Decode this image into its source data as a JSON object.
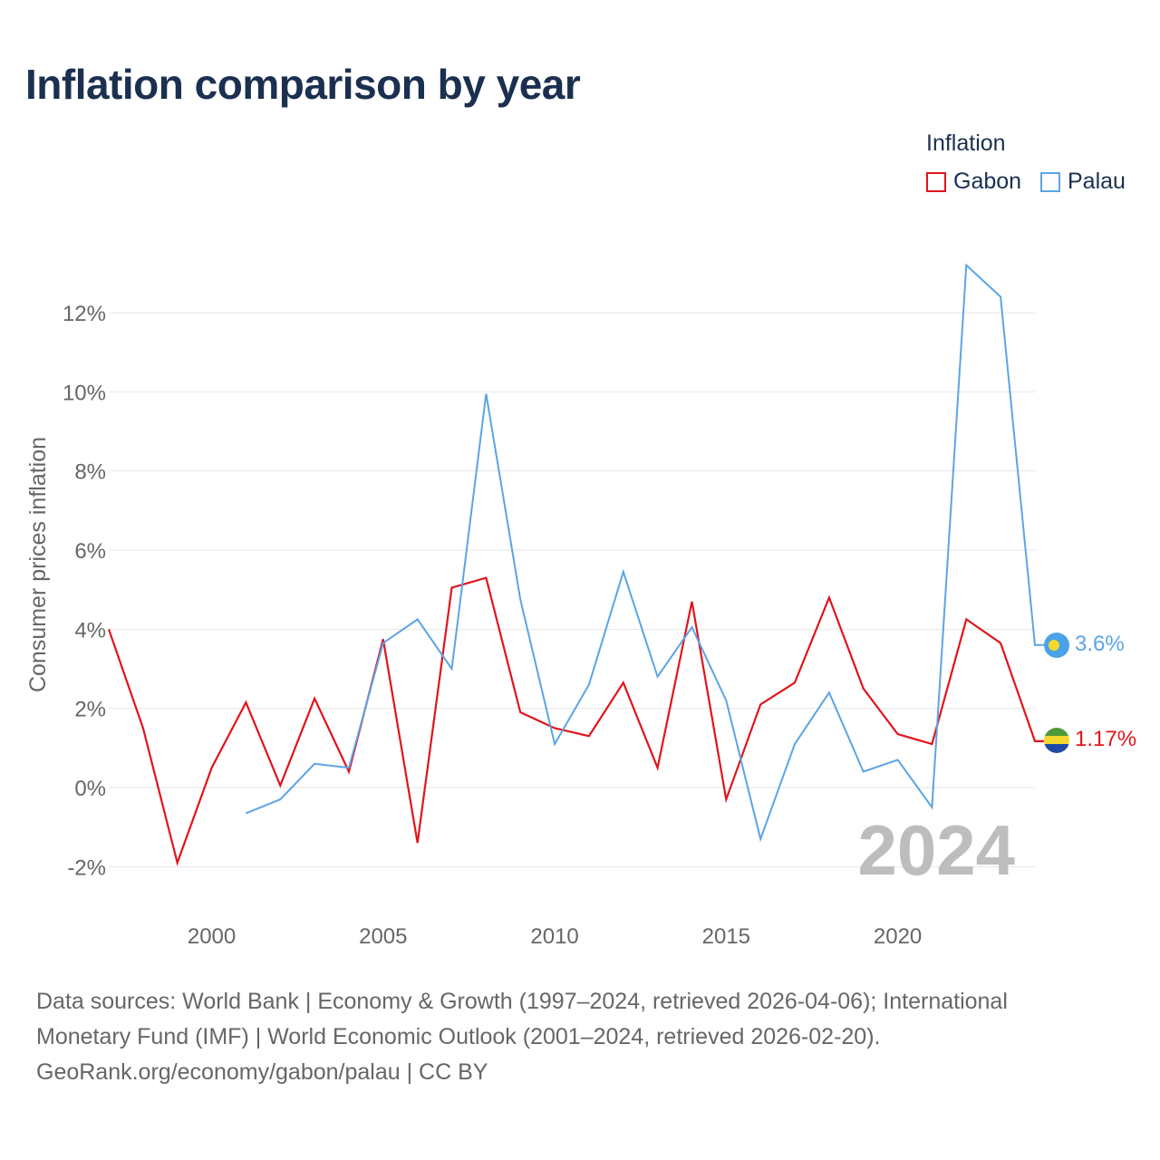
{
  "title": "Inflation comparison by year",
  "legend": {
    "title": "Inflation",
    "items": [
      {
        "label": "Gabon",
        "color": "#e0151b"
      },
      {
        "label": "Palau",
        "color": "#5ba4e6"
      }
    ]
  },
  "year_watermark": "2024",
  "end_labels": {
    "gabon": "1.17%",
    "palau": "3.6%"
  },
  "source": {
    "line1": "Data sources: World Bank | Economy & Growth (1997–2024, retrieved 2026-04-06); International",
    "line2": "Monetary Fund (IMF) | World Economic Outlook (2001–2024, retrieved 2026-02-20).",
    "line3": "GeoRank.org/economy/gabon/palau | CC BY"
  },
  "chart_data": {
    "type": "line",
    "title": "Inflation comparison by year",
    "xlabel": "",
    "ylabel": "Consumer prices inflation",
    "xlim": [
      1997,
      2024
    ],
    "ylim": [
      -2,
      12
    ],
    "yticks": [
      -2,
      0,
      2,
      4,
      6,
      8,
      10,
      12
    ],
    "ytick_labels": [
      "-2%",
      "0%",
      "2%",
      "4%",
      "6%",
      "8%",
      "10%",
      "12%"
    ],
    "xticks": [
      2000,
      2005,
      2010,
      2015,
      2020
    ],
    "xtick_labels": [
      "2000",
      "2005",
      "2010",
      "2015",
      "2020"
    ],
    "grid": true,
    "legend_position": "top-right",
    "series": [
      {
        "name": "Gabon",
        "color": "#e0151b",
        "x": [
          1997,
          1998,
          1999,
          2000,
          2001,
          2002,
          2003,
          2004,
          2005,
          2006,
          2007,
          2008,
          2009,
          2010,
          2011,
          2012,
          2013,
          2014,
          2015,
          2016,
          2017,
          2018,
          2019,
          2020,
          2021,
          2022,
          2023,
          2024
        ],
        "values": [
          4.0,
          1.5,
          -1.9,
          0.5,
          2.15,
          0.05,
          2.25,
          0.4,
          3.75,
          -1.4,
          5.05,
          5.3,
          1.9,
          1.5,
          1.3,
          2.65,
          0.5,
          4.7,
          -0.3,
          2.1,
          2.65,
          4.8,
          2.5,
          1.35,
          1.1,
          4.25,
          3.65,
          1.17
        ]
      },
      {
        "name": "Palau",
        "color": "#5ba4e6",
        "x": [
          2001,
          2002,
          2003,
          2004,
          2005,
          2006,
          2007,
          2008,
          2009,
          2010,
          2011,
          2012,
          2013,
          2014,
          2015,
          2016,
          2017,
          2018,
          2019,
          2020,
          2021,
          2022,
          2023,
          2024
        ],
        "values": [
          -0.65,
          -0.3,
          0.6,
          0.5,
          3.65,
          4.25,
          3.0,
          9.95,
          4.75,
          1.1,
          2.6,
          5.45,
          2.8,
          4.05,
          2.2,
          -1.3,
          1.1,
          2.4,
          0.4,
          0.7,
          -0.5,
          13.2,
          12.4,
          3.6
        ]
      }
    ]
  }
}
